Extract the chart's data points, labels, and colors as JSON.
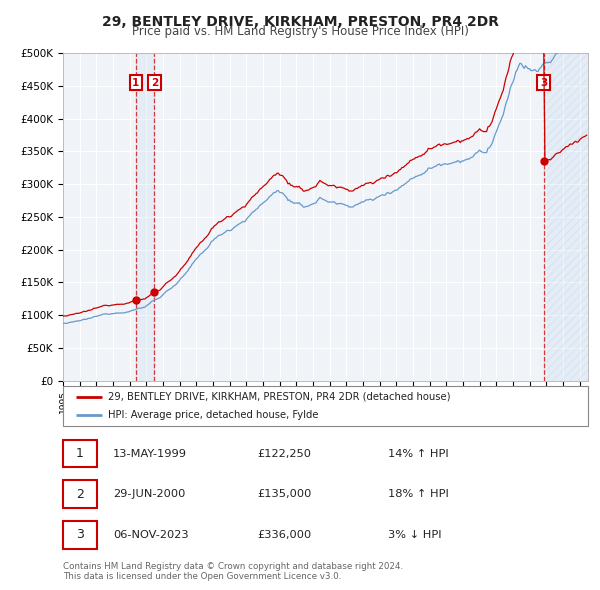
{
  "title": "29, BENTLEY DRIVE, KIRKHAM, PRESTON, PR4 2DR",
  "subtitle": "Price paid vs. HM Land Registry's House Price Index (HPI)",
  "ylim": [
    0,
    500000
  ],
  "yticks": [
    0,
    50000,
    100000,
    150000,
    200000,
    250000,
    300000,
    350000,
    400000,
    450000,
    500000
  ],
  "ytick_labels": [
    "£0",
    "£50K",
    "£100K",
    "£150K",
    "£200K",
    "£250K",
    "£300K",
    "£350K",
    "£400K",
    "£450K",
    "£500K"
  ],
  "xlim_start": 1995.0,
  "xlim_end": 2026.5,
  "xticks": [
    1995,
    1996,
    1997,
    1998,
    1999,
    2000,
    2001,
    2002,
    2003,
    2004,
    2005,
    2006,
    2007,
    2008,
    2009,
    2010,
    2011,
    2012,
    2013,
    2014,
    2015,
    2016,
    2017,
    2018,
    2019,
    2020,
    2021,
    2022,
    2023,
    2024,
    2025,
    2026
  ],
  "property_color": "#cc0000",
  "hpi_color": "#6699cc",
  "background_color": "#f0f4f8",
  "grid_color": "#ffffff",
  "sale1_date": 1999.37,
  "sale1_price": 122250,
  "sale2_date": 2000.49,
  "sale2_price": 135000,
  "sale3_date": 2023.84,
  "sale3_price": 336000,
  "legend_prop_label": "29, BENTLEY DRIVE, KIRKHAM, PRESTON, PR4 2DR (detached house)",
  "legend_hpi_label": "HPI: Average price, detached house, Fylde",
  "table_entries": [
    {
      "num": "1",
      "date": "13-MAY-1999",
      "price": "£122,250",
      "pct": "14%",
      "dir": "↑",
      "ref": "HPI"
    },
    {
      "num": "2",
      "date": "29-JUN-2000",
      "price": "£135,000",
      "pct": "18%",
      "dir": "↑",
      "ref": "HPI"
    },
    {
      "num": "3",
      "date": "06-NOV-2023",
      "price": "£336,000",
      "pct": "3%",
      "dir": "↓",
      "ref": "HPI"
    }
  ],
  "footnote1": "Contains HM Land Registry data © Crown copyright and database right 2024.",
  "footnote2": "This data is licensed under the Open Government Licence v3.0."
}
